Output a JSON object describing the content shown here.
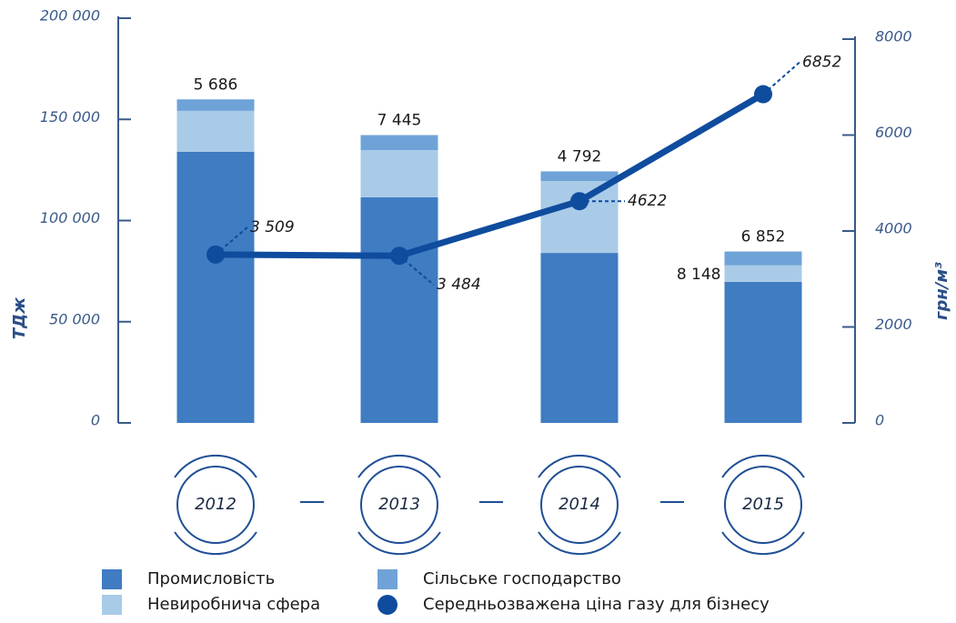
{
  "chart_data": {
    "type": "bar",
    "categories": [
      "2012",
      "2013",
      "2014",
      "2015"
    ],
    "ylabel": "ТДж",
    "y2label": "грн/м³",
    "ylim": [
      0,
      200000
    ],
    "yticks": [
      0,
      {
        "value": 50000,
        "label": "50 000"
      },
      {
        "value": 100000,
        "label": "100 000"
      },
      {
        "value": 150000,
        "label": "150 000"
      },
      {
        "value": 200000,
        "label": "200 000"
      }
    ],
    "y2lim": [
      0,
      8000
    ],
    "y2ticks": [
      0,
      2000,
      4000,
      6000,
      8000
    ],
    "series": [
      {
        "name": "Промисловість",
        "color": "#3f7cc2",
        "values": [
          134000,
          111500,
          84000,
          69700
        ]
      },
      {
        "name": "Невиробнича сфера",
        "color": "#a9cbe8",
        "values": [
          20200,
          23300,
          35500,
          8148
        ],
        "value_labels": [
          null,
          null,
          null,
          "8 148"
        ]
      },
      {
        "name": "Сільське господарство",
        "color": "#6fa3d8",
        "values": [
          5686,
          7445,
          4792,
          6852
        ],
        "value_labels": [
          "5 686",
          "7 445",
          "4 792",
          "6 852"
        ]
      },
      {
        "name": "Середньозважена ціна газу для бізнесу",
        "type": "line",
        "axis": "y2",
        "color": "#0f4c9e",
        "values": [
          3509,
          3484,
          4622,
          6852
        ],
        "value_labels": [
          "3 509",
          "3 484",
          "4622",
          "6852"
        ]
      }
    ]
  }
}
